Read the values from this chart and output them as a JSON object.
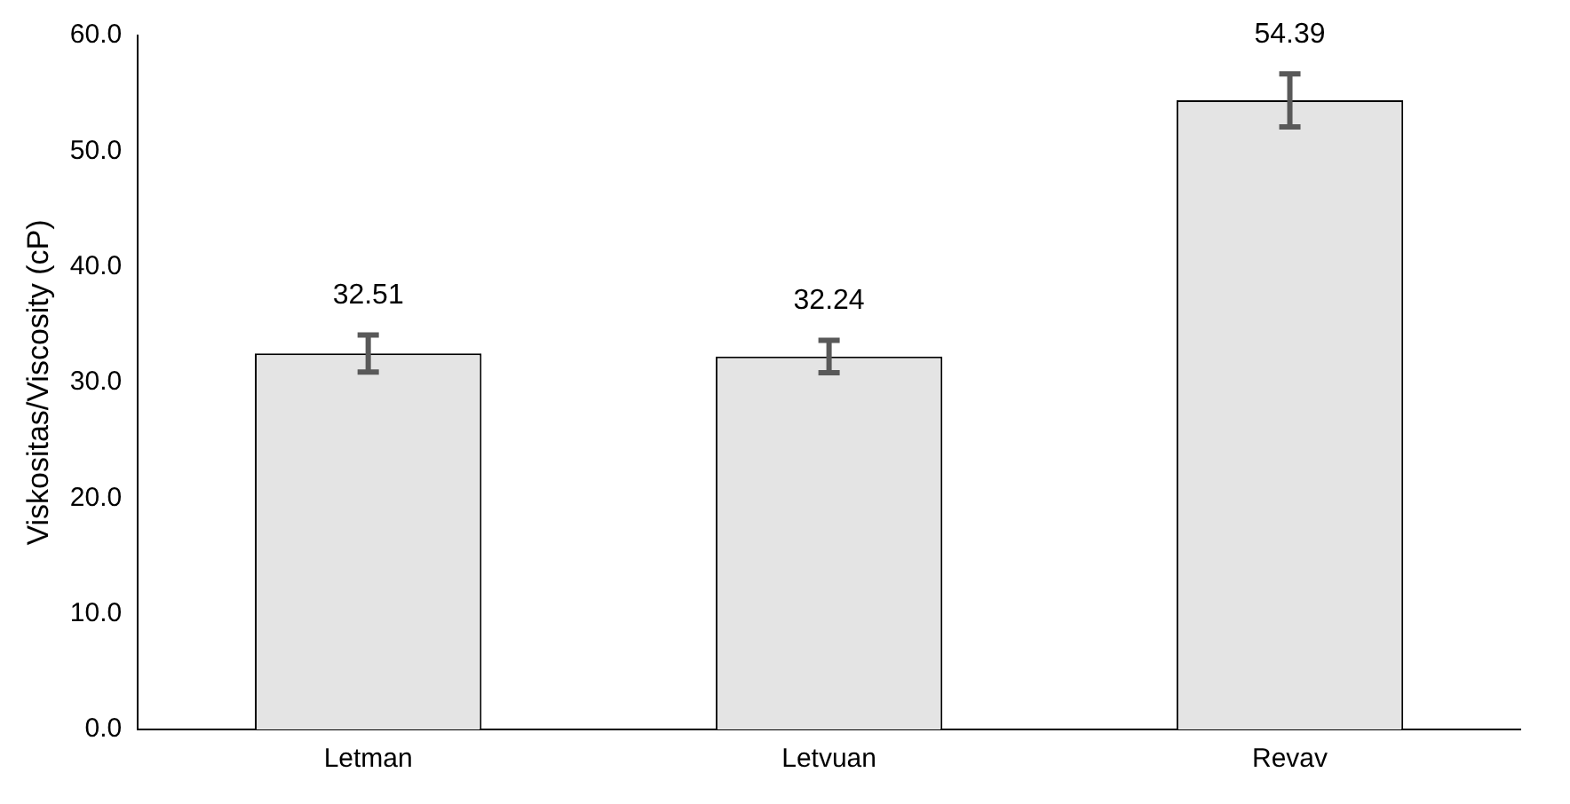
{
  "chart_data": {
    "type": "bar",
    "ylabel": "Viskositas/Viscosity (cP)",
    "categories": [
      "Letman",
      "Letvuan",
      "Revav"
    ],
    "values": [
      32.51,
      32.24,
      54.39
    ],
    "errors": [
      1.6,
      1.4,
      2.3
    ],
    "color": "#e4e4e4",
    "data_labels": true,
    "ylim": [
      0,
      60
    ],
    "yticks": [
      {
        "value": 0,
        "label": "0.0"
      },
      {
        "value": 10,
        "label": "10.0"
      },
      {
        "value": 20,
        "label": "20.0"
      },
      {
        "value": 30,
        "label": "30.0"
      },
      {
        "value": 40,
        "label": "40.0"
      },
      {
        "value": 50,
        "label": "50.0"
      },
      {
        "value": 60,
        "label": "60.0"
      }
    ],
    "grid": false,
    "legend": false
  }
}
